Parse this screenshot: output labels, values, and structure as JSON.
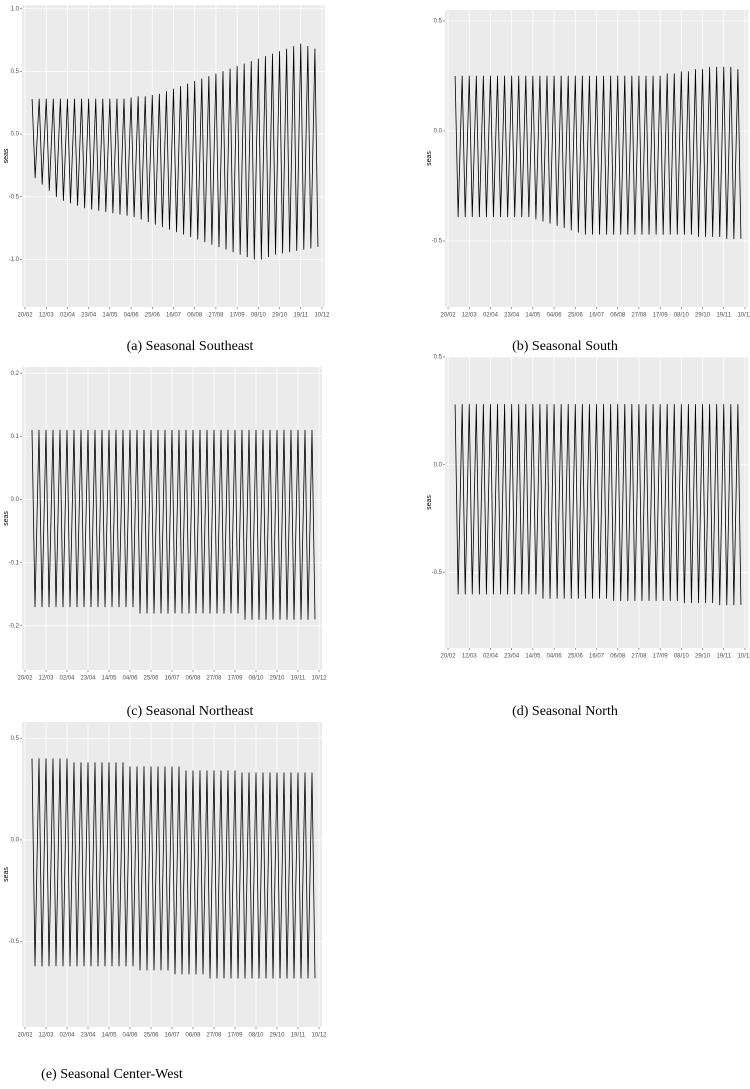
{
  "chart_data": [
    {
      "type": "line",
      "caption": "(a) Seasonal Southeast",
      "y_label": "seas",
      "xlim": [
        "17/02",
        "13/12"
      ],
      "xticks": [
        "20/02",
        "12/03",
        "02/04",
        "23/04",
        "14/05",
        "04/06",
        "25/06",
        "16/07",
        "06/08",
        "27/08",
        "17/09",
        "08/10",
        "29/10",
        "19/11",
        "10/12"
      ],
      "ylim": [
        -1.38,
        1.03
      ],
      "yticks": [
        {
          "value": -1,
          "label": "-1.0"
        },
        -0.5,
        {
          "value": 0,
          "label": "0.0"
        },
        0.5,
        {
          "value": 1,
          "label": "1.0"
        }
      ],
      "grid": true,
      "color": "#000000",
      "x": [
        "27/02",
        "01/03",
        "05/03",
        "08/03",
        "12/03",
        "15/03",
        "19/03",
        "22/03",
        "26/03",
        "29/03",
        "02/04",
        "05/04",
        "09/04",
        "12/04",
        "16/04",
        "19/04",
        "23/04",
        "26/04",
        "30/04",
        "03/05",
        "07/05",
        "10/05",
        "14/05",
        "17/05",
        "21/05",
        "24/05",
        "28/05",
        "31/05",
        "04/06",
        "07/06",
        "11/06",
        "14/06",
        "18/06",
        "21/06",
        "25/06",
        "28/06",
        "02/07",
        "05/07",
        "09/07",
        "12/07",
        "16/07",
        "19/07",
        "23/07",
        "26/07",
        "30/07",
        "02/08",
        "06/08",
        "09/08",
        "13/08",
        "16/08",
        "20/08",
        "23/08",
        "27/08",
        "30/08",
        "03/09",
        "06/09",
        "10/09",
        "13/09",
        "17/09",
        "20/09",
        "24/09",
        "27/09",
        "01/10",
        "04/10",
        "08/10",
        "11/10",
        "15/10",
        "18/10",
        "22/10",
        "25/10",
        "29/10",
        "01/11",
        "05/11",
        "08/11",
        "12/11",
        "15/11",
        "19/11",
        "22/11",
        "26/11",
        "29/11",
        "03/12",
        "06/12"
      ],
      "values": [
        0.28,
        -0.35,
        0.28,
        -0.4,
        0.28,
        -0.45,
        0.28,
        -0.5,
        0.28,
        -0.53,
        0.28,
        -0.55,
        0.28,
        -0.57,
        0.28,
        -0.59,
        0.28,
        -0.6,
        0.28,
        -0.61,
        0.28,
        -0.62,
        0.28,
        -0.63,
        0.28,
        -0.64,
        0.28,
        -0.65,
        0.29,
        -0.66,
        0.3,
        -0.68,
        0.3,
        -0.7,
        0.31,
        -0.72,
        0.32,
        -0.74,
        0.34,
        -0.76,
        0.36,
        -0.78,
        0.38,
        -0.8,
        0.4,
        -0.82,
        0.42,
        -0.84,
        0.44,
        -0.86,
        0.46,
        -0.88,
        0.48,
        -0.9,
        0.5,
        -0.92,
        0.52,
        -0.94,
        0.54,
        -0.96,
        0.56,
        -0.98,
        0.58,
        -1.0,
        0.6,
        -1.0,
        0.62,
        -0.98,
        0.64,
        -0.96,
        0.66,
        -0.95,
        0.68,
        -0.94,
        0.7,
        -0.93,
        0.72,
        -0.92,
        0.7,
        -0.91,
        0.68,
        -0.9
      ]
    },
    {
      "type": "line",
      "caption": "(b) Seasonal South",
      "y_label": "seas",
      "xlim": [
        "17/02",
        "13/12"
      ],
      "xticks": [
        "20/02",
        "12/03",
        "02/04",
        "23/04",
        "14/05",
        "04/06",
        "25/06",
        "16/07",
        "06/08",
        "27/08",
        "17/09",
        "08/10",
        "29/10",
        "19/11",
        "10/12"
      ],
      "ylim": [
        -0.8,
        0.55
      ],
      "yticks": [
        -0.5,
        {
          "value": 0,
          "label": "0.0"
        },
        0.5
      ],
      "grid": true,
      "color": "#000000",
      "x": [
        "27/02",
        "01/03",
        "05/03",
        "08/03",
        "12/03",
        "15/03",
        "19/03",
        "22/03",
        "26/03",
        "29/03",
        "02/04",
        "05/04",
        "09/04",
        "12/04",
        "16/04",
        "19/04",
        "23/04",
        "26/04",
        "30/04",
        "03/05",
        "07/05",
        "10/05",
        "14/05",
        "17/05",
        "21/05",
        "24/05",
        "28/05",
        "31/05",
        "04/06",
        "07/06",
        "11/06",
        "14/06",
        "18/06",
        "21/06",
        "25/06",
        "28/06",
        "02/07",
        "05/07",
        "09/07",
        "12/07",
        "16/07",
        "19/07",
        "23/07",
        "26/07",
        "30/07",
        "02/08",
        "06/08",
        "09/08",
        "13/08",
        "16/08",
        "20/08",
        "23/08",
        "27/08",
        "30/08",
        "03/09",
        "06/09",
        "10/09",
        "13/09",
        "17/09",
        "20/09",
        "24/09",
        "27/09",
        "01/10",
        "04/10",
        "08/10",
        "11/10",
        "15/10",
        "18/10",
        "22/10",
        "25/10",
        "29/10",
        "01/11",
        "05/11",
        "08/11",
        "12/11",
        "15/11",
        "19/11",
        "22/11",
        "26/11",
        "29/11",
        "03/12",
        "06/12"
      ],
      "values": [
        0.25,
        -0.39,
        0.25,
        -0.39,
        0.25,
        -0.39,
        0.25,
        -0.39,
        0.25,
        -0.39,
        0.25,
        -0.39,
        0.25,
        -0.39,
        0.25,
        -0.39,
        0.25,
        -0.39,
        0.25,
        -0.39,
        0.25,
        -0.39,
        0.25,
        -0.4,
        0.25,
        -0.41,
        0.25,
        -0.42,
        0.25,
        -0.43,
        0.25,
        -0.44,
        0.25,
        -0.45,
        0.25,
        -0.46,
        0.25,
        -0.47,
        0.25,
        -0.47,
        0.25,
        -0.47,
        0.25,
        -0.47,
        0.25,
        -0.47,
        0.25,
        -0.47,
        0.25,
        -0.47,
        0.25,
        -0.47,
        0.25,
        -0.47,
        0.25,
        -0.47,
        0.25,
        -0.47,
        0.25,
        -0.47,
        0.26,
        -0.47,
        0.26,
        -0.47,
        0.27,
        -0.47,
        0.27,
        -0.47,
        0.28,
        -0.48,
        0.28,
        -0.48,
        0.29,
        -0.48,
        0.29,
        -0.48,
        0.29,
        -0.49,
        0.29,
        -0.49,
        0.28,
        -0.49
      ]
    },
    {
      "type": "line",
      "caption": "(c) Seasonal Northeast",
      "y_label": "seas",
      "xlim": [
        "17/02",
        "13/12"
      ],
      "xticks": [
        "20/02",
        "12/03",
        "02/04",
        "23/04",
        "14/05",
        "04/06",
        "25/06",
        "16/07",
        "06/08",
        "27/08",
        "17/09",
        "08/10",
        "29/10",
        "19/11",
        "10/12"
      ],
      "ylim": [
        -0.27,
        0.21
      ],
      "yticks": [
        -0.2,
        -0.1,
        {
          "value": 0,
          "label": "0.0"
        },
        0.1,
        0.2
      ],
      "grid": true,
      "color": "#000000",
      "x": [
        "27/02",
        "01/03",
        "05/03",
        "08/03",
        "12/03",
        "15/03",
        "19/03",
        "22/03",
        "26/03",
        "29/03",
        "02/04",
        "05/04",
        "09/04",
        "12/04",
        "16/04",
        "19/04",
        "23/04",
        "26/04",
        "30/04",
        "03/05",
        "07/05",
        "10/05",
        "14/05",
        "17/05",
        "21/05",
        "24/05",
        "28/05",
        "31/05",
        "04/06",
        "07/06",
        "11/06",
        "14/06",
        "18/06",
        "21/06",
        "25/06",
        "28/06",
        "02/07",
        "05/07",
        "09/07",
        "12/07",
        "16/07",
        "19/07",
        "23/07",
        "26/07",
        "30/07",
        "02/08",
        "06/08",
        "09/08",
        "13/08",
        "16/08",
        "20/08",
        "23/08",
        "27/08",
        "30/08",
        "03/09",
        "06/09",
        "10/09",
        "13/09",
        "17/09",
        "20/09",
        "24/09",
        "27/09",
        "01/10",
        "04/10",
        "08/10",
        "11/10",
        "15/10",
        "18/10",
        "22/10",
        "25/10",
        "29/10",
        "01/11",
        "05/11",
        "08/11",
        "12/11",
        "15/11",
        "19/11",
        "22/11",
        "26/11",
        "29/11",
        "03/12",
        "06/12"
      ],
      "values": [
        0.11,
        -0.17,
        0.11,
        -0.17,
        0.11,
        -0.17,
        0.11,
        -0.17,
        0.11,
        -0.17,
        0.11,
        -0.17,
        0.11,
        -0.17,
        0.11,
        -0.17,
        0.11,
        -0.17,
        0.11,
        -0.17,
        0.11,
        -0.17,
        0.11,
        -0.17,
        0.11,
        -0.17,
        0.11,
        -0.17,
        0.11,
        -0.17,
        0.11,
        -0.18,
        0.11,
        -0.18,
        0.11,
        -0.18,
        0.11,
        -0.18,
        0.11,
        -0.18,
        0.11,
        -0.18,
        0.11,
        -0.18,
        0.11,
        -0.18,
        0.11,
        -0.18,
        0.11,
        -0.18,
        0.11,
        -0.18,
        0.11,
        -0.18,
        0.11,
        -0.18,
        0.11,
        -0.18,
        0.11,
        -0.18,
        0.11,
        -0.19,
        0.11,
        -0.19,
        0.11,
        -0.19,
        0.11,
        -0.19,
        0.11,
        -0.19,
        0.11,
        -0.19,
        0.11,
        -0.19,
        0.11,
        -0.19,
        0.11,
        -0.19,
        0.11,
        -0.19,
        0.11,
        -0.19
      ]
    },
    {
      "type": "line",
      "caption": "(d) Seasonal North",
      "y_label": "seas",
      "xlim": [
        "17/02",
        "13/12"
      ],
      "xticks": [
        "20/02",
        "12/03",
        "02/04",
        "23/04",
        "14/05",
        "04/06",
        "25/06",
        "16/07",
        "06/08",
        "27/08",
        "17/09",
        "08/10",
        "29/10",
        "19/11",
        "10/12"
      ],
      "ylim": [
        -0.85,
        0.5
      ],
      "yticks": [
        -0.5,
        {
          "value": 0,
          "label": "0.0"
        },
        0.5
      ],
      "grid": true,
      "color": "#000000",
      "x": [
        "27/02",
        "01/03",
        "05/03",
        "08/03",
        "12/03",
        "15/03",
        "19/03",
        "22/03",
        "26/03",
        "29/03",
        "02/04",
        "05/04",
        "09/04",
        "12/04",
        "16/04",
        "19/04",
        "23/04",
        "26/04",
        "30/04",
        "03/05",
        "07/05",
        "10/05",
        "14/05",
        "17/05",
        "21/05",
        "24/05",
        "28/05",
        "31/05",
        "04/06",
        "07/06",
        "11/06",
        "14/06",
        "18/06",
        "21/06",
        "25/06",
        "28/06",
        "02/07",
        "05/07",
        "09/07",
        "12/07",
        "16/07",
        "19/07",
        "23/07",
        "26/07",
        "30/07",
        "02/08",
        "06/08",
        "09/08",
        "13/08",
        "16/08",
        "20/08",
        "23/08",
        "27/08",
        "30/08",
        "03/09",
        "06/09",
        "10/09",
        "13/09",
        "17/09",
        "20/09",
        "24/09",
        "27/09",
        "01/10",
        "04/10",
        "08/10",
        "11/10",
        "15/10",
        "18/10",
        "22/10",
        "25/10",
        "29/10",
        "01/11",
        "05/11",
        "08/11",
        "12/11",
        "15/11",
        "19/11",
        "22/11",
        "26/11",
        "29/11",
        "03/12",
        "06/12"
      ],
      "values": [
        0.28,
        -0.6,
        0.28,
        -0.6,
        0.28,
        -0.6,
        0.28,
        -0.6,
        0.28,
        -0.6,
        0.28,
        -0.6,
        0.28,
        -0.6,
        0.28,
        -0.6,
        0.28,
        -0.6,
        0.28,
        -0.6,
        0.28,
        -0.6,
        0.28,
        -0.6,
        0.28,
        -0.62,
        0.28,
        -0.62,
        0.28,
        -0.62,
        0.28,
        -0.62,
        0.28,
        -0.62,
        0.28,
        -0.62,
        0.28,
        -0.62,
        0.28,
        -0.62,
        0.28,
        -0.62,
        0.28,
        -0.62,
        0.28,
        -0.63,
        0.28,
        -0.63,
        0.28,
        -0.63,
        0.28,
        -0.63,
        0.28,
        -0.63,
        0.28,
        -0.63,
        0.28,
        -0.63,
        0.28,
        -0.63,
        0.28,
        -0.63,
        0.28,
        -0.63,
        0.28,
        -0.64,
        0.28,
        -0.64,
        0.28,
        -0.64,
        0.28,
        -0.64,
        0.28,
        -0.64,
        0.28,
        -0.65,
        0.28,
        -0.65,
        0.28,
        -0.65,
        0.28,
        -0.65
      ]
    },
    {
      "type": "line",
      "caption": "(e) Seasonal Center-West",
      "y_label": "seas",
      "xlim": [
        "17/02",
        "13/12"
      ],
      "xticks": [
        "20/02",
        "12/03",
        "02/04",
        "23/04",
        "14/05",
        "04/06",
        "25/06",
        "16/07",
        "06/08",
        "27/08",
        "17/09",
        "08/10",
        "29/10",
        "19/11",
        "10/12"
      ],
      "ylim": [
        -0.92,
        0.58
      ],
      "yticks": [
        -0.5,
        {
          "value": 0,
          "label": "0.0"
        },
        0.5
      ],
      "grid": true,
      "color": "#000000",
      "x": [
        "27/02",
        "01/03",
        "05/03",
        "08/03",
        "12/03",
        "15/03",
        "19/03",
        "22/03",
        "26/03",
        "29/03",
        "02/04",
        "05/04",
        "09/04",
        "12/04",
        "16/04",
        "19/04",
        "23/04",
        "26/04",
        "30/04",
        "03/05",
        "07/05",
        "10/05",
        "14/05",
        "17/05",
        "21/05",
        "24/05",
        "28/05",
        "31/05",
        "04/06",
        "07/06",
        "11/06",
        "14/06",
        "18/06",
        "21/06",
        "25/06",
        "28/06",
        "02/07",
        "05/07",
        "09/07",
        "12/07",
        "16/07",
        "19/07",
        "23/07",
        "26/07",
        "30/07",
        "02/08",
        "06/08",
        "09/08",
        "13/08",
        "16/08",
        "20/08",
        "23/08",
        "27/08",
        "30/08",
        "03/09",
        "06/09",
        "10/09",
        "13/09",
        "17/09",
        "20/09",
        "24/09",
        "27/09",
        "01/10",
        "04/10",
        "08/10",
        "11/10",
        "15/10",
        "18/10",
        "22/10",
        "25/10",
        "29/10",
        "01/11",
        "05/11",
        "08/11",
        "12/11",
        "15/11",
        "19/11",
        "22/11",
        "26/11",
        "29/11",
        "03/12",
        "06/12"
      ],
      "values": [
        0.4,
        -0.62,
        0.4,
        -0.62,
        0.4,
        -0.62,
        0.4,
        -0.62,
        0.4,
        -0.62,
        0.4,
        -0.62,
        0.38,
        -0.62,
        0.38,
        -0.62,
        0.38,
        -0.62,
        0.38,
        -0.62,
        0.38,
        -0.62,
        0.38,
        -0.62,
        0.38,
        -0.62,
        0.38,
        -0.62,
        0.36,
        -0.62,
        0.36,
        -0.64,
        0.36,
        -0.64,
        0.36,
        -0.64,
        0.36,
        -0.64,
        0.36,
        -0.64,
        0.36,
        -0.66,
        0.36,
        -0.66,
        0.34,
        -0.66,
        0.34,
        -0.66,
        0.34,
        -0.66,
        0.34,
        -0.68,
        0.34,
        -0.68,
        0.34,
        -0.68,
        0.34,
        -0.68,
        0.34,
        -0.68,
        0.33,
        -0.68,
        0.33,
        -0.68,
        0.33,
        -0.68,
        0.33,
        -0.68,
        0.33,
        -0.68,
        0.33,
        -0.68,
        0.33,
        -0.68,
        0.33,
        -0.68,
        0.33,
        -0.68,
        0.33,
        -0.68,
        0.33,
        -0.68
      ]
    }
  ]
}
